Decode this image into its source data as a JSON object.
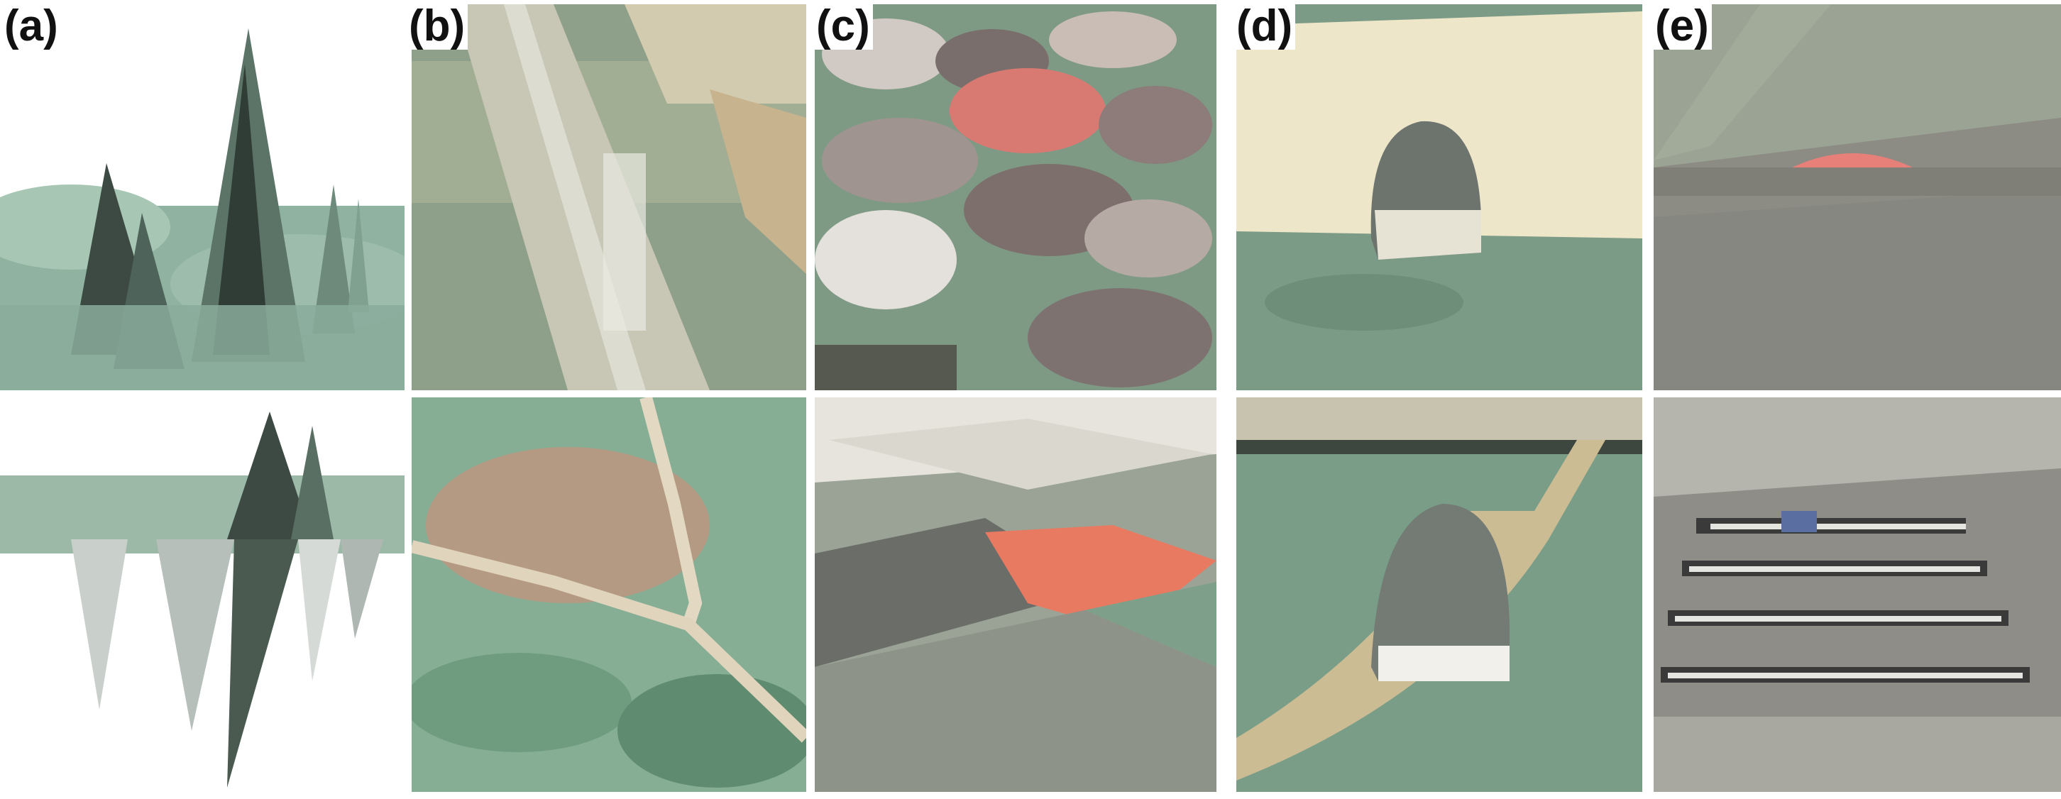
{
  "figure": {
    "panels": [
      {
        "id": "a",
        "label": "(a)"
      },
      {
        "id": "b",
        "label": "(b)"
      },
      {
        "id": "c",
        "label": "(c)"
      },
      {
        "id": "d",
        "label": "(d)"
      },
      {
        "id": "e",
        "label": "(e)"
      }
    ]
  },
  "colors": {
    "background": "#ffffff",
    "vegetation_green": "#7fa592",
    "dark_tree": "#2f3d36",
    "roof_red": "#e0705f",
    "road_beige": "#d8c9a8",
    "field_cream": "#ede3c4",
    "asphalt_gray": "#8c8c85"
  }
}
